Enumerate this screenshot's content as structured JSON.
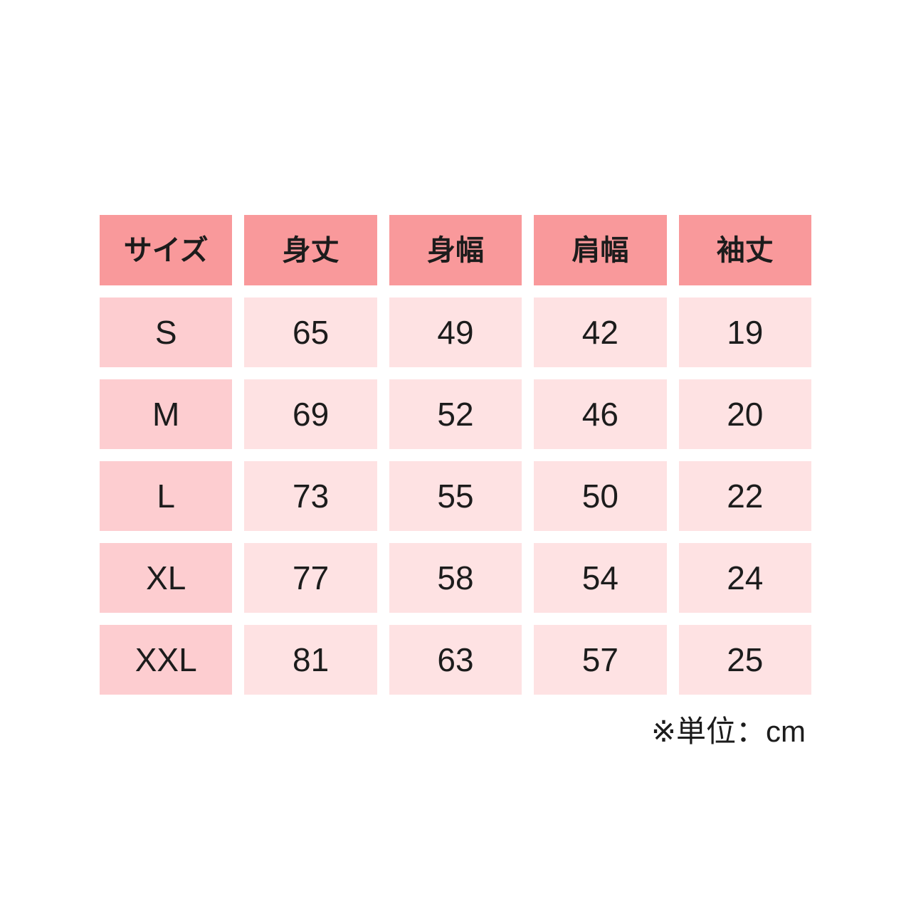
{
  "table": {
    "columns": [
      "サイズ",
      "身丈",
      "身幅",
      "肩幅",
      "袖丈"
    ],
    "rows": [
      {
        "size": "S",
        "values": [
          65,
          49,
          42,
          19
        ]
      },
      {
        "size": "M",
        "values": [
          69,
          52,
          46,
          20
        ]
      },
      {
        "size": "L",
        "values": [
          73,
          55,
          50,
          22
        ]
      },
      {
        "size": "XL",
        "values": [
          77,
          58,
          54,
          24
        ]
      },
      {
        "size": "XXL",
        "values": [
          81,
          63,
          57,
          25
        ]
      }
    ],
    "footnote": "※単位：cm"
  },
  "chart_data": {
    "type": "table",
    "title": "",
    "columns": [
      "サイズ",
      "身丈",
      "身幅",
      "肩幅",
      "袖丈"
    ],
    "rows": [
      [
        "S",
        65,
        49,
        42,
        19
      ],
      [
        "M",
        69,
        52,
        46,
        20
      ],
      [
        "L",
        73,
        55,
        50,
        22
      ],
      [
        "XL",
        77,
        58,
        54,
        24
      ],
      [
        "XXL",
        81,
        63,
        57,
        25
      ]
    ],
    "footnote": "※単位：cm",
    "unit": "cm"
  },
  "colors": {
    "header_bg": "#F9999B",
    "size_col_bg": "#FDCDD0",
    "cell_bg": "#FEE2E3",
    "text": "#1C1C1C",
    "background": "#FFFFFF"
  }
}
